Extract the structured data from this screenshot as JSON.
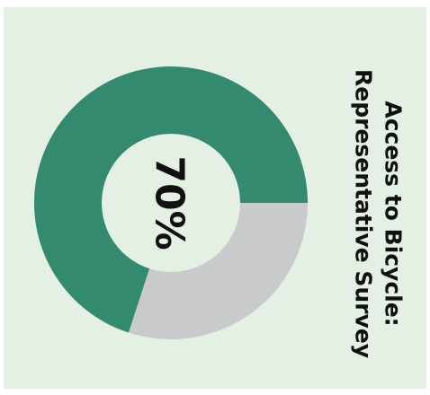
{
  "chart_data": {
    "type": "pie",
    "title": "Access to Bicycle: Representative Survey",
    "title_lines": [
      "Access to Bicycle:",
      "Representative Survey"
    ],
    "center_label": "70%",
    "slices": [
      {
        "value": 70,
        "color": "#348a6e"
      },
      {
        "value": 30,
        "color": "#c9cacb"
      }
    ]
  },
  "colors": {
    "background": "#e3f0e3",
    "accent": "#348a6e",
    "remainder": "#c9cacb",
    "text": "#111111"
  }
}
